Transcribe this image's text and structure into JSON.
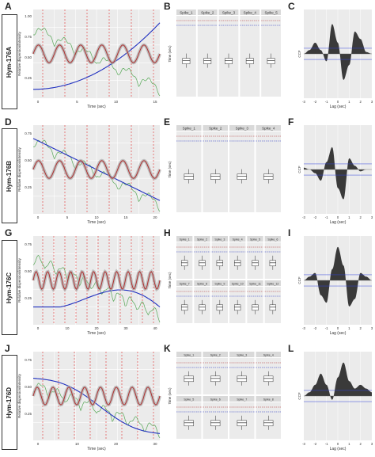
{
  "figure": {
    "rows": [
      {
        "letters": [
          "A",
          "B",
          "C"
        ],
        "label": "Hym-176A"
      },
      {
        "letters": [
          "D",
          "E",
          "F"
        ],
        "label": "Hym-176B"
      },
      {
        "letters": [
          "G",
          "H",
          "I"
        ],
        "label": "Hym-176C"
      },
      {
        "letters": [
          "J",
          "K",
          "L"
        ],
        "label": "Hym-176D"
      }
    ],
    "trace_axes": {
      "ylabel": "Relative dispersion/intensity",
      "xlabel": "Time (sec)"
    },
    "box_axes": {
      "ylabel": "Time (sec)"
    },
    "ccf_axes": {
      "ylabel": "CCF",
      "xlabel": "Lag (sec)",
      "ticks": [
        "-3",
        "-2",
        "-1",
        "0",
        "1",
        "2",
        "3"
      ]
    }
  },
  "panels": [
    {
      "id": "A",
      "xticks": [
        "0",
        "5",
        "10",
        "15"
      ],
      "yticks": [
        "0.25",
        "0.50",
        "0.75",
        "1.00"
      ]
    },
    {
      "id": "D",
      "xticks": [
        "0",
        "5",
        "10",
        "15",
        "20"
      ],
      "yticks": [
        "0.25",
        "0.50",
        "0.75"
      ]
    },
    {
      "id": "G",
      "xticks": [
        "0",
        "10",
        "20",
        "30",
        "40"
      ],
      "yticks": [
        "0.25",
        "0.50",
        "0.75"
      ]
    },
    {
      "id": "J",
      "xticks": [
        "0",
        "10",
        "20",
        "30"
      ],
      "yticks": [
        "0.25",
        "0.50",
        "0.75"
      ]
    }
  ],
  "boxes": [
    {
      "id": "B",
      "strips": [
        "Spike_1",
        "Spike_2",
        "Spike_3",
        "Spike_4",
        "Spike_5"
      ]
    },
    {
      "id": "E",
      "strips": [
        "Spike_1",
        "Spike_2",
        "Spike_3",
        "Spike_4"
      ]
    },
    {
      "id": "H",
      "strips": [
        "Spike_1",
        "Spike_2",
        "Spike_3",
        "Spike_4",
        "Spike_5",
        "Spike_6",
        "Spike_7",
        "Spike_8",
        "Spike_9",
        "Spike_10",
        "Spike_11",
        "Spike_12"
      ]
    },
    {
      "id": "K",
      "strips": [
        "Spike_1",
        "Spike_2",
        "Spike_3",
        "Spike_4",
        "Spike_5",
        "Spike_6",
        "Spike_7",
        "Spike_8"
      ]
    }
  ],
  "colors": {
    "red": "#b03030",
    "green": "#58a858",
    "blue": "#2030c0",
    "panel_bg": "#ebebeb",
    "ccf_fill": "#3a3a3a",
    "ccf_line": "#3344dd",
    "dash": "#e03030"
  },
  "chart_data": [
    {
      "type": "line",
      "panel": "C",
      "xlabel": "Lag (sec)",
      "ylabel": "CCF",
      "xlim": [
        -3,
        3
      ],
      "x": [
        -3,
        -2.5,
        -2,
        -1.5,
        -1,
        -0.5,
        0,
        0.5,
        1,
        1.5,
        2,
        2.5,
        3
      ],
      "y": [
        0.0,
        0.1,
        0.3,
        0.1,
        -0.2,
        0.8,
        0.3,
        -0.7,
        -0.3,
        0.6,
        0.4,
        0.05,
        0.0
      ]
    },
    {
      "type": "line",
      "panel": "F",
      "xlabel": "Lag (sec)",
      "ylabel": "CCF",
      "xlim": [
        -3,
        3
      ],
      "x": [
        -3,
        -2.5,
        -2,
        -1.5,
        -1,
        -0.5,
        0,
        0.5,
        1,
        1.5,
        2,
        2.5,
        3
      ],
      "y": [
        0.05,
        0.0,
        -0.1,
        -0.3,
        0.2,
        0.6,
        -0.5,
        -0.8,
        0.3,
        0.1,
        -0.05,
        0.0,
        0.0
      ]
    },
    {
      "type": "line",
      "panel": "I",
      "xlabel": "Lag (sec)",
      "ylabel": "CCF",
      "xlim": [
        -3,
        3
      ],
      "x": [
        -3,
        -2.5,
        -2,
        -1.5,
        -1,
        -0.5,
        0,
        0.5,
        1,
        1.5,
        2,
        2.5,
        3
      ],
      "y": [
        0.0,
        0.1,
        0.2,
        -0.4,
        -0.6,
        0.3,
        0.9,
        0.4,
        -0.7,
        -0.5,
        0.2,
        0.1,
        0.0
      ]
    },
    {
      "type": "line",
      "panel": "L",
      "xlabel": "Lag (sec)",
      "ylabel": "CCF",
      "xlim": [
        -3,
        3
      ],
      "x": [
        -3,
        -2.5,
        -2,
        -1.5,
        -1,
        -0.5,
        0,
        0.5,
        1,
        1.5,
        2,
        2.5,
        3
      ],
      "y": [
        0.0,
        0.1,
        0.3,
        0.6,
        0.3,
        -0.1,
        0.5,
        0.9,
        0.4,
        0.2,
        0.3,
        0.2,
        0.1
      ]
    }
  ]
}
